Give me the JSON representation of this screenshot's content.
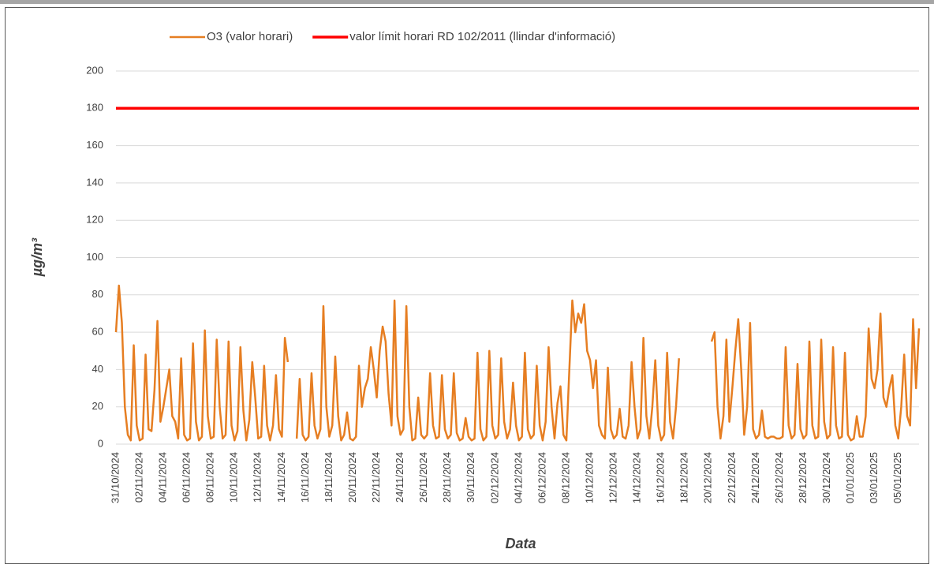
{
  "chart_data": {
    "type": "line",
    "xlabel": "Data",
    "ylabel": "µg/m³",
    "ylim": [
      0,
      200
    ],
    "yticks": [
      0,
      20,
      40,
      60,
      80,
      100,
      120,
      140,
      160,
      180,
      200
    ],
    "grid": true,
    "legend": "top",
    "categories": [
      "31/10/2024",
      null,
      null,
      null,
      null,
      null,
      null,
      null,
      "02/11/2024",
      null,
      null,
      null,
      null,
      null,
      null,
      null,
      "04/11/2024",
      null,
      null,
      null,
      null,
      null,
      null,
      null,
      "06/11/2024",
      null,
      null,
      null,
      null,
      null,
      null,
      null,
      "08/11/2024",
      null,
      null,
      null,
      null,
      null,
      null,
      null,
      "10/11/2024",
      null,
      null,
      null,
      null,
      null,
      null,
      null,
      "12/11/2024",
      null,
      null,
      null,
      null,
      null,
      null,
      null,
      "14/11/2024",
      null,
      null,
      null,
      null,
      null,
      null,
      null,
      "16/11/2024",
      null,
      null,
      null,
      null,
      null,
      null,
      null,
      "18/11/2024",
      null,
      null,
      null,
      null,
      null,
      null,
      null,
      "20/11/2024",
      null,
      null,
      null,
      null,
      null,
      null,
      null,
      "22/11/2024",
      null,
      null,
      null,
      null,
      null,
      null,
      null,
      "24/11/2024",
      null,
      null,
      null,
      null,
      null,
      null,
      null,
      "26/11/2024",
      null,
      null,
      null,
      null,
      null,
      null,
      null,
      "28/11/2024",
      null,
      null,
      null,
      null,
      null,
      null,
      null,
      "30/11/2024",
      null,
      null,
      null,
      null,
      null,
      null,
      null,
      "02/12/2024",
      null,
      null,
      null,
      null,
      null,
      null,
      null,
      "04/12/2024",
      null,
      null,
      null,
      null,
      null,
      null,
      null,
      "06/12/2024",
      null,
      null,
      null,
      null,
      null,
      null,
      null,
      "08/12/2024",
      null,
      null,
      null,
      null,
      null,
      null,
      null,
      "10/12/2024",
      null,
      null,
      null,
      null,
      null,
      null,
      null,
      "12/12/2024",
      null,
      null,
      null,
      null,
      null,
      null,
      null,
      "14/12/2024",
      null,
      null,
      null,
      null,
      null,
      null,
      null,
      "16/12/2024",
      null,
      null,
      null,
      null,
      null,
      null,
      null,
      "18/12/2024",
      null,
      null,
      null,
      null,
      null,
      null,
      null,
      "20/12/2024",
      null,
      null,
      null,
      null,
      null,
      null,
      null,
      "22/12/2024",
      null,
      null,
      null,
      null,
      null,
      null,
      null,
      "24/12/2024",
      null,
      null,
      null,
      null,
      null,
      null,
      null,
      "26/12/2024",
      null,
      null,
      null,
      null,
      null,
      null,
      null,
      "28/12/2024",
      null,
      null,
      null,
      null,
      null,
      null,
      null,
      "30/12/2024",
      null,
      null,
      null,
      null,
      null,
      null,
      null,
      "01/01/2025",
      null,
      null,
      null,
      null,
      null,
      null,
      null,
      "03/01/2025",
      null,
      null,
      null,
      null,
      null,
      null,
      null,
      "05/01/2025",
      null,
      null,
      null,
      null,
      null,
      null,
      null
    ],
    "series": [
      {
        "name": "O3 (valor horari)",
        "color": "#e67e22",
        "values": [
          60,
          85,
          65,
          20,
          5,
          2,
          53,
          10,
          2,
          3,
          48,
          8,
          7,
          29,
          66,
          12,
          20,
          30,
          40,
          15,
          12,
          3,
          46,
          5,
          2,
          3,
          54,
          12,
          2,
          4,
          61,
          15,
          3,
          4,
          56,
          20,
          3,
          5,
          55,
          10,
          2,
          7,
          52,
          18,
          2,
          13,
          44,
          25,
          3,
          4,
          42,
          10,
          2,
          10,
          37,
          8,
          4,
          57,
          44,
          null,
          null,
          3,
          35,
          5,
          2,
          4,
          38,
          10,
          3,
          8,
          74,
          20,
          4,
          10,
          47,
          15,
          2,
          5,
          17,
          3,
          2,
          4,
          42,
          20,
          30,
          35,
          52,
          40,
          25,
          50,
          63,
          55,
          27,
          10,
          77,
          15,
          5,
          8,
          74,
          20,
          2,
          3,
          25,
          5,
          3,
          5,
          38,
          10,
          3,
          4,
          37,
          8,
          3,
          5,
          38,
          6,
          2,
          3,
          14,
          4,
          2,
          3,
          49,
          8,
          2,
          4,
          50,
          10,
          3,
          5,
          46,
          12,
          3,
          8,
          33,
          10,
          2,
          4,
          49,
          8,
          3,
          5,
          42,
          10,
          2,
          12,
          52,
          20,
          3,
          22,
          31,
          5,
          2,
          40,
          77,
          60,
          70,
          65,
          75,
          50,
          45,
          30,
          45,
          10,
          5,
          3,
          41,
          8,
          3,
          5,
          19,
          4,
          3,
          10,
          44,
          20,
          3,
          8,
          57,
          15,
          3,
          20,
          45,
          10,
          2,
          5,
          49,
          12,
          3,
          20,
          46,
          null,
          null,
          null,
          null,
          null,
          null,
          null,
          null,
          null,
          null,
          55,
          60,
          20,
          3,
          15,
          56,
          12,
          30,
          50,
          67,
          40,
          5,
          20,
          65,
          8,
          3,
          5,
          18,
          4,
          3,
          4,
          4,
          3,
          3,
          4,
          52,
          10,
          3,
          5,
          43,
          8,
          3,
          5,
          55,
          10,
          3,
          4,
          56,
          12,
          3,
          5,
          52,
          10,
          3,
          4,
          49,
          5,
          2,
          3,
          15,
          4,
          4,
          15,
          62,
          35,
          30,
          40,
          70,
          25,
          20,
          30,
          37,
          10,
          3,
          20,
          48,
          15,
          10,
          67,
          30,
          62
        ]
      },
      {
        "name": "valor límit horari RD 102/2011 (llindar d'informació)",
        "color": "#ff0000",
        "values": [
          180,
          180,
          180,
          180,
          180,
          180,
          180,
          180,
          180,
          180,
          180,
          180,
          180,
          180,
          180,
          180,
          180,
          180,
          180,
          180,
          180,
          180,
          180,
          180,
          180,
          180,
          180,
          180,
          180,
          180,
          180,
          180,
          180,
          180,
          180,
          180,
          180,
          180,
          180,
          180,
          180,
          180,
          180,
          180,
          180,
          180,
          180,
          180,
          180,
          180,
          180,
          180,
          180,
          180,
          180,
          180,
          180,
          180,
          180,
          180,
          180,
          180,
          180,
          180,
          180,
          180,
          180,
          180,
          180,
          180,
          180,
          180,
          180,
          180,
          180,
          180,
          180,
          180,
          180,
          180,
          180,
          180,
          180,
          180,
          180,
          180,
          180,
          180,
          180,
          180,
          180,
          180,
          180,
          180,
          180,
          180,
          180,
          180,
          180,
          180,
          180,
          180,
          180,
          180,
          180,
          180,
          180,
          180,
          180,
          180,
          180,
          180,
          180,
          180,
          180,
          180,
          180,
          180,
          180,
          180,
          180,
          180,
          180,
          180,
          180,
          180,
          180,
          180,
          180,
          180,
          180,
          180,
          180,
          180,
          180,
          180,
          180,
          180,
          180,
          180,
          180,
          180,
          180,
          180,
          180,
          180,
          180,
          180,
          180,
          180,
          180,
          180,
          180,
          180,
          180,
          180,
          180,
          180,
          180,
          180,
          180,
          180,
          180,
          180,
          180,
          180,
          180,
          180,
          180,
          180,
          180,
          180,
          180,
          180,
          180,
          180,
          180,
          180,
          180,
          180,
          180,
          180,
          180,
          180,
          180,
          180,
          180,
          180,
          180,
          180,
          180,
          180,
          180,
          180,
          180,
          180,
          180,
          180,
          180,
          180,
          180,
          180,
          180,
          180,
          180,
          180,
          180,
          180,
          180,
          180,
          180,
          180,
          180,
          180,
          180,
          180,
          180,
          180,
          180,
          180,
          180,
          180,
          180,
          180,
          180,
          180,
          180,
          180,
          180,
          180,
          180,
          180,
          180,
          180,
          180,
          180,
          180,
          180,
          180,
          180,
          180,
          180,
          180,
          180,
          180,
          180,
          180,
          180,
          180,
          180,
          180,
          180,
          180,
          180,
          180,
          180,
          180,
          180,
          180,
          180,
          180,
          180,
          180,
          180,
          180,
          180,
          180,
          180,
          180,
          180,
          180,
          180
        ]
      }
    ]
  }
}
